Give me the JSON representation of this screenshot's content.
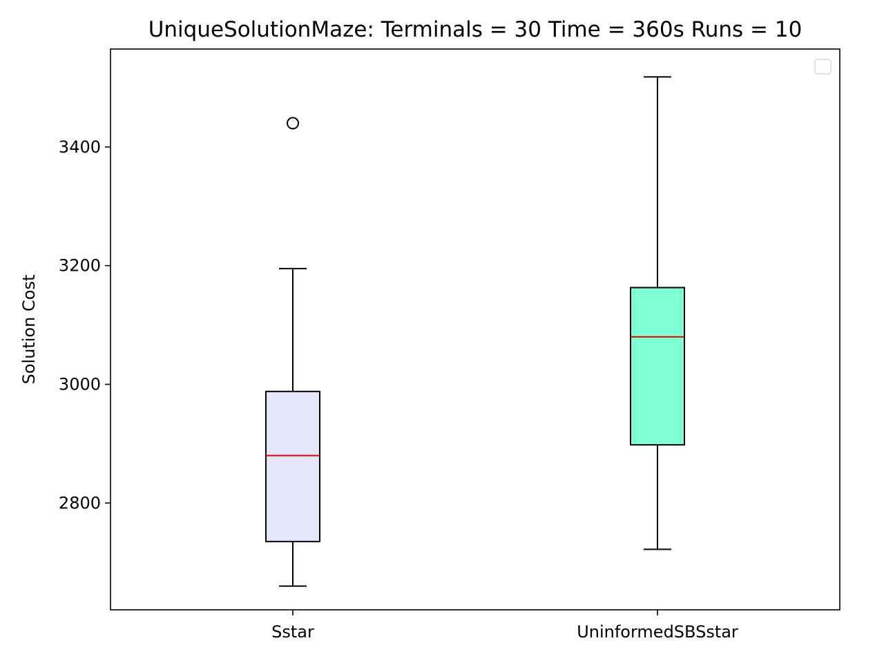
{
  "chart_data": {
    "type": "boxplot",
    "title": "UniqueSolutionMaze:  Terminals = 30  Time = 360s  Runs = 10",
    "xlabel": "",
    "ylabel": "Solution Cost",
    "ylim": [
      2620,
      3565
    ],
    "yticks": [
      2800,
      3000,
      3200,
      3400
    ],
    "grid": false,
    "legend": {
      "placement": "top-right",
      "entries": []
    },
    "categories": [
      "Sstar",
      "UninformedSBSstar"
    ],
    "series": [
      {
        "category": "Sstar",
        "color": "#e6e6fa",
        "whisker_low": 2660,
        "q1": 2735,
        "median": 2880,
        "q3": 2988,
        "whisker_high": 3195,
        "outliers": [
          3440
        ]
      },
      {
        "category": "UninformedSBSstar",
        "color": "#7fffd4",
        "whisker_low": 2722,
        "q1": 2898,
        "median": 3080,
        "q3": 3163,
        "whisker_high": 3518,
        "outliers": []
      }
    ],
    "colors": {
      "median": "#e00000",
      "box_edge": "#000000",
      "whisker": "#000000"
    }
  }
}
